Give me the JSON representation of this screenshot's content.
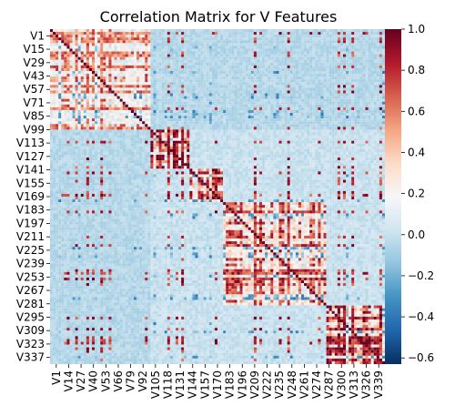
{
  "chart_data": {
    "type": "heatmap",
    "title": "Correlation Matrix for V Features",
    "xlabel": "",
    "ylabel": "",
    "x_tick_labels": [
      "V1",
      "V14",
      "V27",
      "V40",
      "V53",
      "V66",
      "V79",
      "V92",
      "V105",
      "V118",
      "V131",
      "V144",
      "V157",
      "V170",
      "V183",
      "V196",
      "V209",
      "V222",
      "V235",
      "V248",
      "V261",
      "V274",
      "V287",
      "V300",
      "V313",
      "V326",
      "V339"
    ],
    "y_tick_labels": [
      "V1",
      "V15",
      "V29",
      "V43",
      "V57",
      "V71",
      "V85",
      "V99",
      "V113",
      "V127",
      "V141",
      "V155",
      "V169",
      "V183",
      "V197",
      "V211",
      "V225",
      "V239",
      "V253",
      "V267",
      "V281",
      "V295",
      "V309",
      "V323",
      "V337"
    ],
    "colorbar": {
      "ticks": [
        1.0,
        0.8,
        0.6,
        0.4,
        0.2,
        0.0,
        -0.2,
        -0.4,
        -0.6
      ],
      "tick_labels": [
        "1.0",
        "0.8",
        "0.6",
        "0.4",
        "0.2",
        "0.0",
        "−0.2",
        "−0.4",
        "−0.6"
      ],
      "vmin": -0.63,
      "vmax": 1.0,
      "colormap": "RdBu_r",
      "colors": [
        "#053061",
        "#2166ac",
        "#4393c3",
        "#92c5de",
        "#d1e5f0",
        "#f7f7f7",
        "#fddbc7",
        "#f4a582",
        "#d6604d",
        "#b2182b",
        "#67001f"
      ]
    },
    "grid": false,
    "diagonal_value": 1.0,
    "blocks": [
      {
        "rows": [
          1,
          100
        ],
        "cols": [
          1,
          100
        ],
        "typical": 0.3
      },
      {
        "rows": [
          100,
          140
        ],
        "cols": [
          100,
          140
        ],
        "typical": 0.6
      },
      {
        "rows": [
          140,
          175
        ],
        "cols": [
          140,
          175
        ],
        "typical": 0.5
      },
      {
        "rows": [
          175,
          280
        ],
        "cols": [
          175,
          280
        ],
        "typical": 0.45
      },
      {
        "rows": [
          280,
          339
        ],
        "cols": [
          280,
          339
        ],
        "typical": 0.55
      },
      {
        "rows": [
          100,
          339
        ],
        "cols": [
          1,
          100
        ],
        "typical": -0.05
      },
      {
        "rows": [
          1,
          100
        ],
        "cols": [
          100,
          339
        ],
        "typical": -0.05
      }
    ]
  }
}
